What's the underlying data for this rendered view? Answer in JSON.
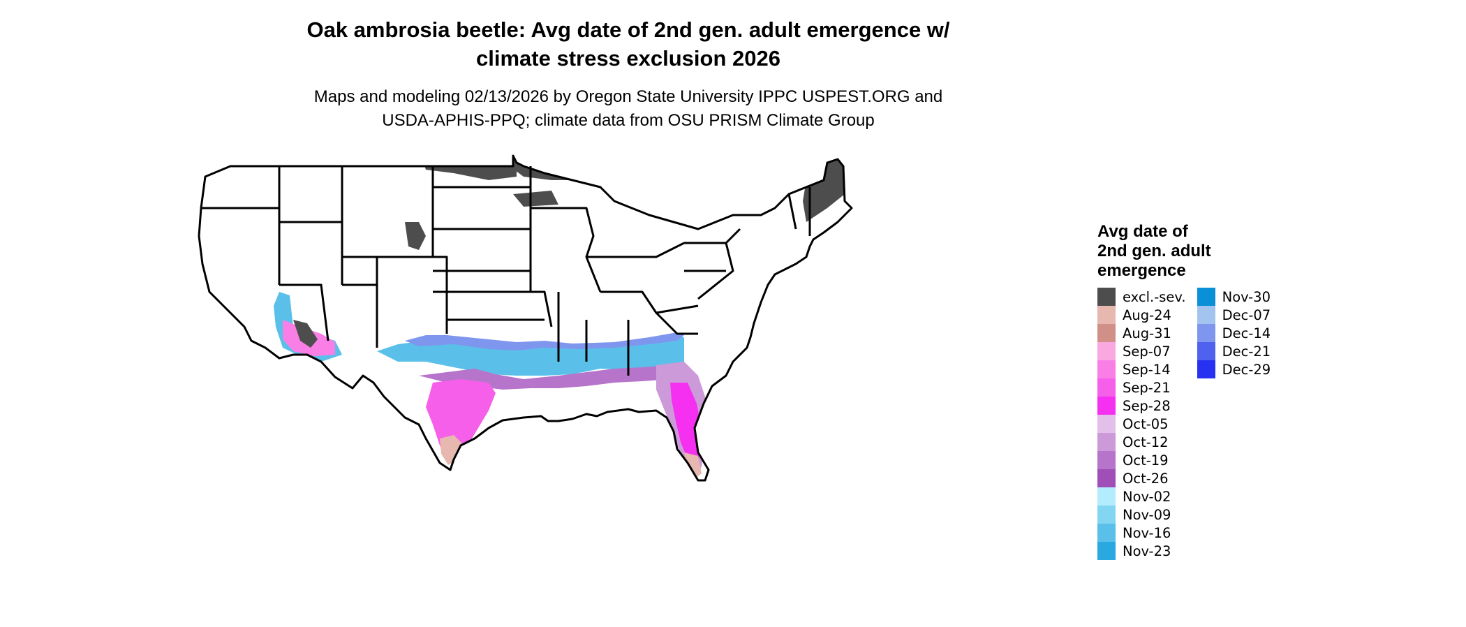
{
  "title": {
    "line1": "Oak ambrosia beetle: Avg date of 2nd gen. adult emergence w/",
    "line2": "climate stress exclusion 2026"
  },
  "subtitle": {
    "line1": "Maps and modeling 02/13/2026 by Oregon State University IPPC USPEST.ORG and",
    "line2": "USDA-APHIS-PPQ; climate data from OSU PRISM Climate Group"
  },
  "legend": {
    "title": [
      "Avg date of",
      "2nd gen. adult",
      "emergence"
    ],
    "columns": [
      [
        {
          "label": "excl.-sev.",
          "color": "#4d4d4d"
        },
        {
          "label": "Aug-24",
          "color": "#e6b8b0"
        },
        {
          "label": "Aug-31",
          "color": "#d09088"
        },
        {
          "label": "Sep-07",
          "color": "#f9a8e0"
        },
        {
          "label": "Sep-14",
          "color": "#f97fe6"
        },
        {
          "label": "Sep-21",
          "color": "#f55fe9"
        },
        {
          "label": "Sep-28",
          "color": "#f530f0"
        },
        {
          "label": "Oct-05",
          "color": "#e2c0ea"
        },
        {
          "label": "Oct-12",
          "color": "#cc9ad8"
        },
        {
          "label": "Oct-19",
          "color": "#b774cb"
        },
        {
          "label": "Oct-26",
          "color": "#a04fb8"
        },
        {
          "label": "Nov-02",
          "color": "#b3ecfc"
        },
        {
          "label": "Nov-09",
          "color": "#82d6f1"
        },
        {
          "label": "Nov-16",
          "color": "#5ac0ea"
        },
        {
          "label": "Nov-23",
          "color": "#2aa8e0"
        }
      ],
      [
        {
          "label": "Nov-30",
          "color": "#0a90d6"
        },
        {
          "label": "Dec-07",
          "color": "#a3c4ee"
        },
        {
          "label": "Dec-14",
          "color": "#7f96ee"
        },
        {
          "label": "Dec-21",
          "color": "#4f62ef"
        },
        {
          "label": "Dec-29",
          "color": "#2631f2"
        }
      ]
    ]
  },
  "map": {
    "region": "Contiguous United States",
    "fill": "#ffffff",
    "border_color": "#000000"
  }
}
